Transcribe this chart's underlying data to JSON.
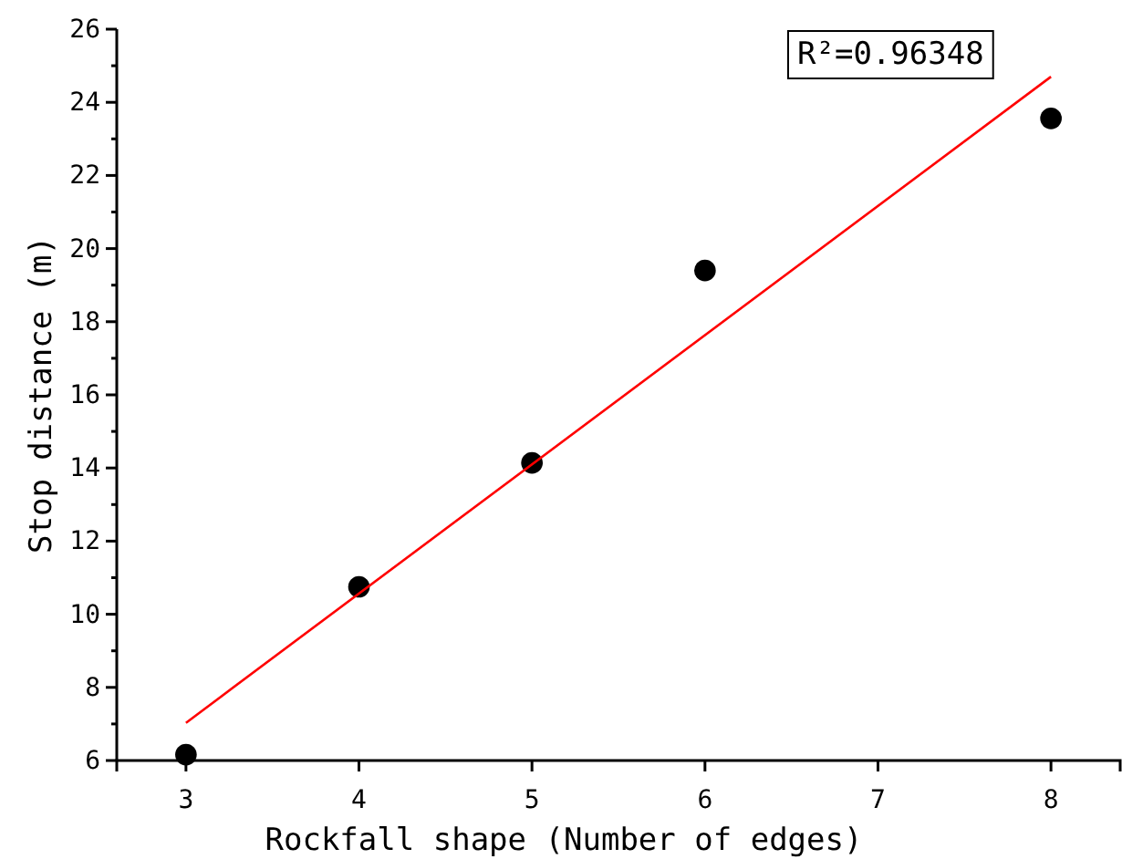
{
  "chart_data": {
    "type": "scatter",
    "xlabel": "Rockfall shape (Number of edges)",
    "ylabel": "Stop distance (m)",
    "xlim": [
      2.6,
      8.4
    ],
    "xticks": [
      3,
      4,
      5,
      6,
      7,
      8
    ],
    "ylim": [
      6,
      26
    ],
    "yticks": [
      6,
      {
        "value": 7,
        "label": null
      },
      8,
      {
        "value": 9,
        "label": null
      },
      10,
      {
        "value": 11,
        "label": null
      },
      12,
      {
        "value": 13,
        "label": null
      },
      14,
      {
        "value": 15,
        "label": null
      },
      16,
      {
        "value": 17,
        "label": null
      },
      18,
      {
        "value": 19,
        "label": null
      },
      20,
      {
        "value": 21,
        "label": null
      },
      22,
      {
        "value": 23,
        "label": null
      },
      24,
      {
        "value": 25,
        "label": null
      },
      26
    ],
    "grid": false,
    "annotations": [
      "R²=0.96348"
    ],
    "series": [
      {
        "marker": "circle",
        "color": "#000000",
        "x": [
          3,
          4,
          5,
          6,
          8
        ],
        "values": [
          6.16,
          10.75,
          14.14,
          19.4,
          23.56
        ]
      },
      {
        "type": "line",
        "color": "#ff0000",
        "x": [
          3,
          8
        ],
        "values": [
          7.03,
          24.7
        ]
      }
    ]
  }
}
